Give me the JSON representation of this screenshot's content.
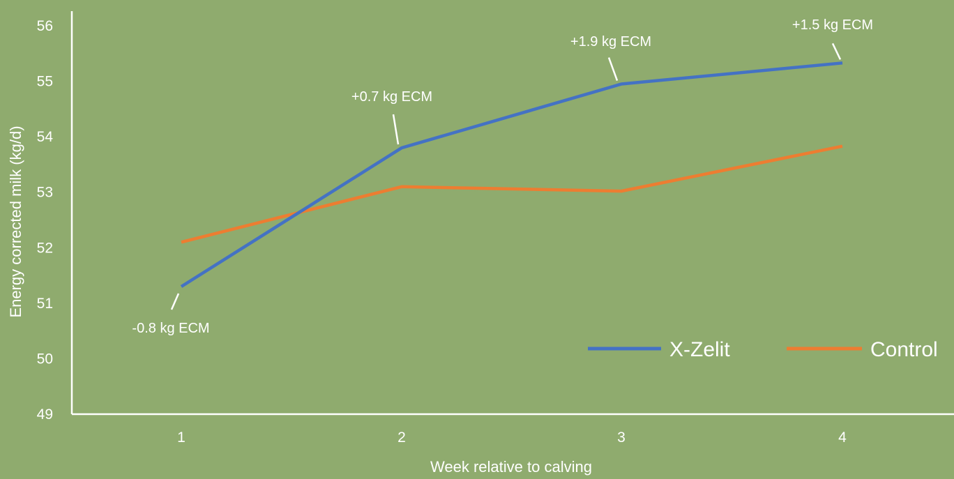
{
  "chart_data": {
    "type": "line",
    "title": "",
    "xlabel": "Week relative to calving",
    "ylabel": "Energy corrected milk (kg/d)",
    "categories": [
      "1",
      "2",
      "3",
      "4"
    ],
    "ylim": [
      49,
      56
    ],
    "yticks": [
      "49",
      "50",
      "51",
      "52",
      "53",
      "54",
      "55",
      "56"
    ],
    "grid": false,
    "legend_position": "bottom-right",
    "series": [
      {
        "name": "X-Zelit",
        "color": "#4472c4",
        "values": [
          51.3,
          53.8,
          54.95,
          55.33
        ]
      },
      {
        "name": "Control",
        "color": "#ed7d31",
        "values": [
          52.1,
          53.1,
          53.02,
          53.83
        ]
      }
    ],
    "annotations": [
      {
        "text": "-0.8 kg ECM",
        "series": "X-Zelit",
        "point": 0
      },
      {
        "text": "+0.7 kg ECM",
        "series": "X-Zelit",
        "point": 1
      },
      {
        "text": "+1.9 kg ECM",
        "series": "X-Zelit",
        "point": 2
      },
      {
        "text": "+1.5 kg ECM",
        "series": "X-Zelit",
        "point": 3
      }
    ],
    "colors": {
      "background": "#8fab6e",
      "axis": "#ffffff",
      "text": "#ffffff"
    }
  }
}
